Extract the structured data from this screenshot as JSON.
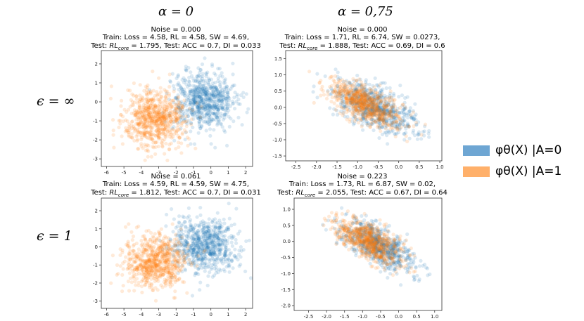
{
  "headers": {
    "col_left": "α = 0",
    "col_right": "α = 0,75",
    "row_top": "ϵ = ∞",
    "row_bottom": "ϵ = 1"
  },
  "legend": [
    {
      "label": "φθ(X) |A=0",
      "color": "#1f77b4"
    },
    {
      "label": "φθ(X) |A=1",
      "color": "#ff7f0e"
    }
  ],
  "chart_data": [
    {
      "type": "scatter",
      "noise_line": "Noise = 0.000",
      "train_line": "Train: Loss = 4.58, RL = 4.58,  SW = 4.69,",
      "test_prefix": "Test: ",
      "rl_symbol": "RL",
      "rl_sub": "core",
      "test_rest": " = 1.795, Test: ACC = 0.7,  DI = 0.033",
      "xlim": [
        -6.3,
        2.4
      ],
      "ylim": [
        -3.4,
        2.7
      ],
      "xticks": [
        "-6",
        "-5",
        "-4",
        "-3",
        "-2",
        "-1",
        "0",
        "1",
        "2"
      ],
      "yticks": [
        "-3",
        "-2",
        "-1",
        "0",
        "1",
        "2"
      ],
      "xtick_values": [
        -6,
        -5,
        -4,
        -3,
        -2,
        -1,
        0,
        1,
        2
      ],
      "ytick_values": [
        -3,
        -2,
        -1,
        0,
        1,
        2
      ],
      "series": [
        {
          "color": "#1f77b4",
          "center": [
            -0.4,
            0.1
          ],
          "spread": [
            0.9,
            0.75
          ],
          "corr": 0
        },
        {
          "color": "#ff7f0e",
          "center": [
            -3.2,
            -0.9
          ],
          "spread": [
            0.9,
            0.75
          ],
          "corr": 0
        }
      ]
    },
    {
      "type": "scatter",
      "noise_line": "Noise = 0.000",
      "train_line": "Train: Loss = 1.71, RL = 6.74,  SW = 0.0273,",
      "test_prefix": "Test: ",
      "rl_symbol": "RL",
      "rl_sub": "core",
      "test_rest": " = 1.888, Test: ACC = 0.69,  DI = 0.6",
      "xlim": [
        -2.75,
        1.05
      ],
      "ylim": [
        -1.65,
        1.75
      ],
      "xticks": [
        "-2.5",
        "-2.0",
        "-1.5",
        "-1.0",
        "-0.5",
        "0.0",
        "0.5",
        "1.0"
      ],
      "yticks": [
        "-1.5",
        "-1.0",
        "-0.5",
        "0.0",
        "0.5",
        "1.0",
        "1.5"
      ],
      "xtick_values": [
        -2.5,
        -2.0,
        -1.5,
        -1.0,
        -0.5,
        0.0,
        0.5,
        1.0
      ],
      "ytick_values": [
        -1.5,
        -1.0,
        -0.5,
        0.0,
        0.5,
        1.0,
        1.5
      ],
      "series": [
        {
          "color": "#1f77b4",
          "center": [
            -0.6,
            0.0
          ],
          "spread": [
            0.5,
            0.4
          ],
          "corr": -0.65
        },
        {
          "color": "#ff7f0e",
          "center": [
            -0.8,
            0.1
          ],
          "spread": [
            0.45,
            0.35
          ],
          "corr": -0.65
        }
      ]
    },
    {
      "type": "scatter",
      "noise_line": "Noise = 0.061",
      "train_line": "Train: Loss = 4.59, RL = 4.59,  SW = 4.75,",
      "test_prefix": "Test: ",
      "rl_symbol": "RL",
      "rl_sub": "core",
      "test_rest": " = 1.812, Test: ACC = 0.7,  DI = 0.031",
      "xlim": [
        -6.3,
        2.4
      ],
      "ylim": [
        -3.4,
        2.7
      ],
      "xticks": [
        "-6",
        "-5",
        "-4",
        "-3",
        "-2",
        "-1",
        "0",
        "1",
        "2"
      ],
      "yticks": [
        "-3",
        "-2",
        "-1",
        "0",
        "1",
        "2"
      ],
      "xtick_values": [
        -6,
        -5,
        -4,
        -3,
        -2,
        -1,
        0,
        1,
        2
      ],
      "ytick_values": [
        -3,
        -2,
        -1,
        0,
        1,
        2
      ],
      "series": [
        {
          "color": "#1f77b4",
          "center": [
            -0.4,
            0.1
          ],
          "spread": [
            0.9,
            0.75
          ],
          "corr": 0
        },
        {
          "color": "#ff7f0e",
          "center": [
            -3.2,
            -0.9
          ],
          "spread": [
            0.9,
            0.75
          ],
          "corr": 0
        }
      ]
    },
    {
      "type": "scatter",
      "noise_line": "Noise = 0.223",
      "train_line": "Train: Loss = 1.73, RL = 6.87,  SW = 0.02,",
      "test_prefix": "Test: ",
      "rl_symbol": "RL",
      "rl_sub": "core",
      "test_rest": " = 2.055, Test: ACC = 0.67,  DI = 0.64",
      "xlim": [
        -2.9,
        1.2
      ],
      "ylim": [
        -2.15,
        1.35
      ],
      "xticks": [
        "-2.5",
        "-2.0",
        "-1.5",
        "-1.0",
        "-0.5",
        "0.0",
        "0.5",
        "1.0"
      ],
      "yticks": [
        "-2.0",
        "-1.5",
        "-1.0",
        "-0.5",
        "0.0",
        "0.5",
        "1.0"
      ],
      "xtick_values": [
        -2.5,
        -2.0,
        -1.5,
        -1.0,
        -0.5,
        0.0,
        0.5,
        1.0
      ],
      "ytick_values": [
        -2.0,
        -1.5,
        -1.0,
        -0.5,
        0.0,
        0.5,
        1.0
      ],
      "series": [
        {
          "color": "#1f77b4",
          "center": [
            -0.6,
            -0.1
          ],
          "spread": [
            0.5,
            0.4
          ],
          "corr": -0.65
        },
        {
          "color": "#ff7f0e",
          "center": [
            -0.8,
            0.0
          ],
          "spread": [
            0.45,
            0.35
          ],
          "corr": -0.65
        }
      ]
    }
  ]
}
